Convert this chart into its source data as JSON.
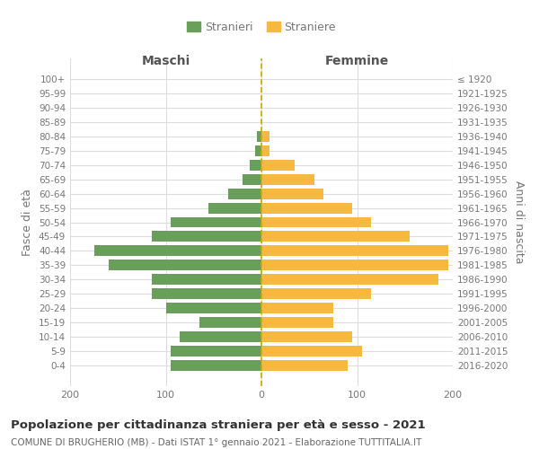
{
  "age_groups": [
    "100+",
    "95-99",
    "90-94",
    "85-89",
    "80-84",
    "75-79",
    "70-74",
    "65-69",
    "60-64",
    "55-59",
    "50-54",
    "45-49",
    "40-44",
    "35-39",
    "30-34",
    "25-29",
    "20-24",
    "15-19",
    "10-14",
    "5-9",
    "0-4"
  ],
  "birth_years": [
    "≤ 1920",
    "1921-1925",
    "1926-1930",
    "1931-1935",
    "1936-1940",
    "1941-1945",
    "1946-1950",
    "1951-1955",
    "1956-1960",
    "1961-1965",
    "1966-1970",
    "1971-1975",
    "1976-1980",
    "1981-1985",
    "1986-1990",
    "1991-1995",
    "1996-2000",
    "2001-2005",
    "2006-2010",
    "2011-2015",
    "2016-2020"
  ],
  "maschi": [
    0,
    0,
    0,
    0,
    5,
    7,
    12,
    20,
    35,
    55,
    95,
    115,
    175,
    160,
    115,
    115,
    100,
    65,
    85,
    95,
    95
  ],
  "femmine": [
    0,
    0,
    0,
    0,
    8,
    8,
    35,
    55,
    65,
    95,
    115,
    155,
    195,
    195,
    185,
    115,
    75,
    75,
    95,
    105,
    90
  ],
  "color_maschi": "#6a9e5b",
  "color_femmine": "#f5b942",
  "xlim": 200,
  "title": "Popolazione per cittadinanza straniera per età e sesso - 2021",
  "subtitle": "COMUNE DI BRUGHERIO (MB) - Dati ISTAT 1° gennaio 2021 - Elaborazione TUTTITALIA.IT",
  "ylabel_left": "Fasce di età",
  "ylabel_right": "Anni di nascita",
  "legend_maschi": "Stranieri",
  "legend_femmine": "Straniere",
  "header_left": "Maschi",
  "header_right": "Femmine",
  "background_color": "#ffffff",
  "grid_color": "#dddddd",
  "label_color": "#777777",
  "dashed_line_color": "#ccaa00",
  "title_color": "#333333",
  "subtitle_color": "#666666"
}
